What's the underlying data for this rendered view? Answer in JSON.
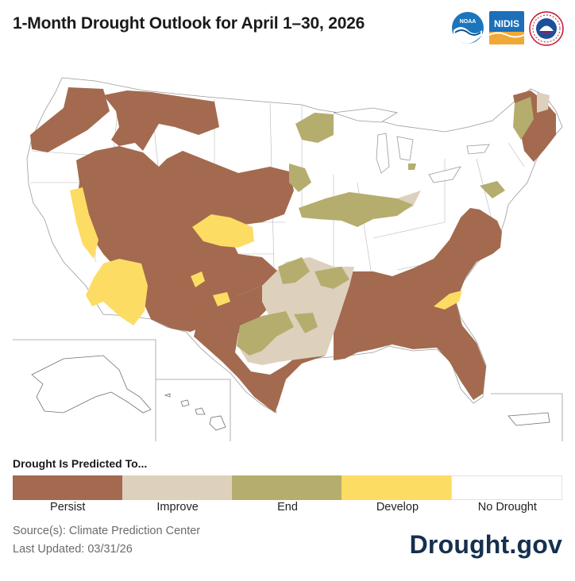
{
  "title": "1-Month Drought Outlook for April 1–30, 2026",
  "logos": {
    "noaa": "NOAA",
    "nidis": "NIDIS",
    "nws": "NATIONAL WEATHER SERVICE"
  },
  "legend": {
    "title": "Drought Is Predicted To...",
    "categories": [
      {
        "label": "Persist",
        "color": "#a36a4f"
      },
      {
        "label": "Improve",
        "color": "#ddd1bd"
      },
      {
        "label": "End",
        "color": "#b5ad6e"
      },
      {
        "label": "Develop",
        "color": "#fddc64"
      },
      {
        "label": "No Drought",
        "color": "#ffffff"
      }
    ]
  },
  "source": "Source(s): Climate Prediction Center",
  "last_updated": "Last Updated: 03/31/26",
  "brand": "Drought.gov"
}
